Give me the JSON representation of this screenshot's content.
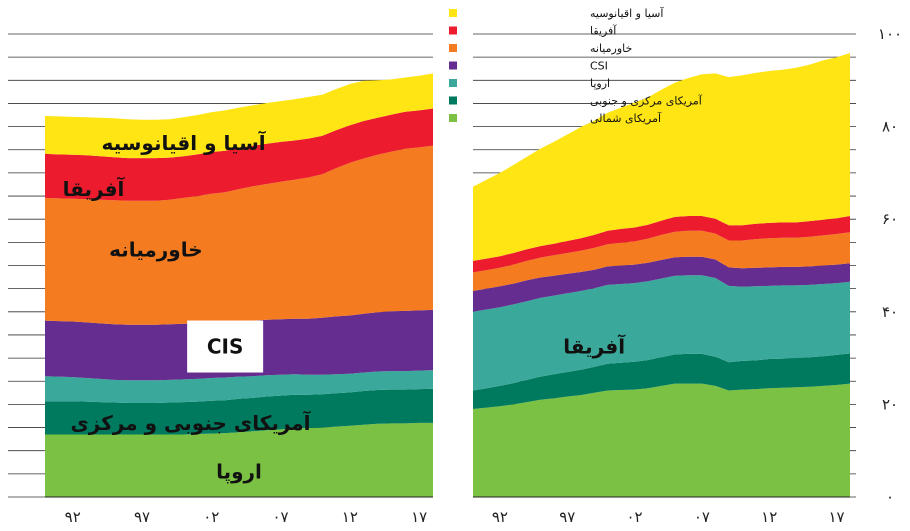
{
  "chart_data": {
    "type": "area",
    "stacked": true,
    "grid": "horizontal",
    "legend_position": "top-center",
    "y_axis_side": "right",
    "ylim": [
      0,
      100
    ],
    "yticks": [
      0,
      20,
      40,
      60,
      80,
      100
    ],
    "ytick_labels": [
      "۰",
      "۲۰",
      "۴۰",
      "۶۰",
      "۸۰",
      "۱۰۰"
    ],
    "legend": [
      {
        "label": "آسیا و اقیانوسیه",
        "color": "#ffe514"
      },
      {
        "label": "آفریقا",
        "color": "#ec1c2e"
      },
      {
        "label": "خاورمیانه",
        "color": "#f47b20"
      },
      {
        "label": "CSI",
        "color": "#662d91"
      },
      {
        "label": "اروپا",
        "color": "#3aa89a"
      },
      {
        "label": "آمریکای مرکزی و جنوبی",
        "color": "#007a5e"
      },
      {
        "label": "آمریکای شمالی",
        "color": "#7bc143"
      }
    ],
    "panels": [
      {
        "x": [
          1990,
          1991,
          1992,
          1993,
          1994,
          1995,
          1996,
          1997,
          1998,
          1999,
          2000,
          2001,
          2002,
          2003,
          2004,
          2005,
          2006,
          2007,
          2008,
          2009,
          2010,
          2011,
          2012,
          2013,
          2014,
          2015,
          2016,
          2017,
          2018
        ],
        "xtick_values": [
          1992,
          1997,
          2002,
          2007,
          2012,
          2017
        ],
        "xtick_labels": [
          "۹۲",
          "۹۷",
          "۰۲",
          "۰۷",
          "۱۲",
          "۱۷"
        ],
        "series": [
          {
            "name": "آمریکای شمالی",
            "color": "#7bc143",
            "values": [
              13.5,
              13.5,
              13.5,
              13.5,
              13.5,
              13.5,
              13.5,
              13.5,
              13.5,
              13.5,
              13.5,
              13.6,
              13.7,
              13.8,
              14,
              14.2,
              14.4,
              14.6,
              14.8,
              14.9,
              15,
              15.2,
              15.4,
              15.6,
              15.8,
              15.9,
              15.9,
              16,
              16
            ]
          },
          {
            "name": "آمریکای مرکزی و جنوبی",
            "color": "#007a5e",
            "values": [
              7.2,
              7.2,
              7.2,
              7.1,
              7,
              6.9,
              6.8,
              6.8,
              6.8,
              6.9,
              7,
              7,
              7.1,
              7.1,
              7.2,
              7.2,
              7.3,
              7.3,
              7.3,
              7.2,
              7.2,
              7.2,
              7.2,
              7.3,
              7.3,
              7.3,
              7.3,
              7.3,
              7.4
            ]
          },
          {
            "name": "اروپا",
            "color": "#3aa89a",
            "values": [
              5.4,
              5.3,
              5.2,
              5.1,
              5,
              4.9,
              4.9,
              4.9,
              4.9,
              4.9,
              4.9,
              4.9,
              4.9,
              4.9,
              4.8,
              4.7,
              4.6,
              4.5,
              4.4,
              4.3,
              4.2,
              4.1,
              4,
              4,
              4,
              4,
              4,
              4,
              4
            ]
          },
          {
            "name": "CSI",
            "color": "#662d91",
            "values": [
              12,
              12,
              12,
              12,
              12,
              12,
              12,
              12,
              12,
              12,
              12,
              12,
              12,
              12,
              12,
              12,
              12,
              12,
              12,
              12.1,
              12.3,
              12.5,
              12.6,
              12.7,
              12.8,
              12.9,
              13,
              13,
              13
            ]
          },
          {
            "name": "خاورمیانه",
            "color": "#f47b20",
            "values": [
              26.5,
              26.5,
              26.5,
              26.6,
              26.7,
              26.8,
              26.8,
              26.8,
              26.8,
              26.9,
              27.2,
              27.5,
              27.8,
              28,
              28.5,
              29,
              29.3,
              29.7,
              30,
              30.5,
              31,
              32,
              33,
              33.5,
              34,
              34.5,
              35,
              35.2,
              35.5
            ]
          },
          {
            "name": "آفریقا",
            "color": "#ec1c2e",
            "values": [
              9.5,
              9.5,
              9.5,
              9.5,
              9.4,
              9.3,
              9.2,
              9.2,
              9.2,
              9.1,
              9,
              9,
              9,
              9,
              8.9,
              8.8,
              8.7,
              8.6,
              8.5,
              8.4,
              8.3,
              8.2,
              8.1,
              8.1,
              8,
              8,
              8,
              8,
              8
            ]
          },
          {
            "name": "آسیا و اقیانوسیه",
            "color": "#ffe514",
            "values": [
              8.2,
              8.2,
              8.2,
              8.2,
              8.3,
              8.4,
              8.4,
              8.3,
              8.3,
              8.3,
              8.4,
              8.5,
              8.6,
              8.7,
              8.7,
              8.7,
              8.8,
              8.8,
              8.9,
              9,
              8.9,
              8.9,
              8.9,
              8.7,
              8.1,
              7.6,
              7.4,
              7.5,
              7.6
            ]
          }
        ]
      },
      {
        "x": [
          1990,
          1991,
          1992,
          1993,
          1994,
          1995,
          1996,
          1997,
          1998,
          1999,
          2000,
          2001,
          2002,
          2003,
          2004,
          2005,
          2006,
          2007,
          2008,
          2009,
          2010,
          2011,
          2012,
          2013,
          2014,
          2015,
          2016,
          2017,
          2018
        ],
        "xtick_values": [
          1992,
          1997,
          2002,
          2007,
          2012,
          2017
        ],
        "xtick_labels": [
          "۹۲",
          "۹۷",
          "۰۲",
          "۰۷",
          "۱۲",
          "۱۷"
        ],
        "series": [
          {
            "name": "آمریکای شمالی",
            "color": "#7bc143",
            "values": [
              19,
              19.3,
              19.6,
              20,
              20.5,
              21,
              21.3,
              21.7,
              22,
              22.5,
              23,
              23.1,
              23.2,
              23.5,
              24,
              24.5,
              24.5,
              24.5,
              24,
              23,
              23.2,
              23.3,
              23.5,
              23.6,
              23.7,
              23.8,
              24,
              24.2,
              24.5
            ]
          },
          {
            "name": "آمریکای مرکزی و جنوبی",
            "color": "#007a5e",
            "values": [
              4,
              4.2,
              4.4,
              4.6,
              4.8,
              5,
              5.2,
              5.3,
              5.5,
              5.6,
              5.8,
              5.9,
              6,
              6.1,
              6.2,
              6.3,
              6.4,
              6.4,
              6.3,
              6.1,
              6.2,
              6.2,
              6.3,
              6.3,
              6.3,
              6.4,
              6.4,
              6.5,
              6.5
            ]
          },
          {
            "name": "اروپا",
            "color": "#3aa89a",
            "values": [
              17,
              17,
              17,
              17,
              17,
              17,
              17,
              17,
              17,
              17,
              17,
              17,
              17,
              17,
              17,
              17,
              17,
              17,
              17,
              16.5,
              16,
              16,
              15.8,
              15.8,
              15.7,
              15.6,
              15.6,
              15.5,
              15.5
            ]
          },
          {
            "name": "CSI",
            "color": "#662d91",
            "values": [
              4.5,
              4.5,
              4.5,
              4.5,
              4.5,
              4.4,
              4.3,
              4.2,
              4.1,
              4,
              4,
              4,
              4,
              4,
              4,
              4,
              4,
              4,
              4,
              4,
              4,
              4,
              4,
              4,
              4,
              4,
              4,
              4,
              4
            ]
          },
          {
            "name": "خاورمیانه",
            "color": "#f47b20",
            "values": [
              4,
              4,
              4,
              4.1,
              4.2,
              4.3,
              4.4,
              4.5,
              4.6,
              4.7,
              4.8,
              4.9,
              5,
              5.2,
              5.4,
              5.5,
              5.6,
              5.6,
              5.6,
              5.8,
              6,
              6.2,
              6.3,
              6.3,
              6.3,
              6.4,
              6.5,
              6.6,
              6.7
            ]
          },
          {
            "name": "آفریقا",
            "color": "#ec1c2e",
            "values": [
              2.5,
              2.5,
              2.5,
              2.5,
              2.5,
              2.5,
              2.5,
              2.6,
              2.7,
              2.8,
              2.9,
              3,
              3,
              3,
              3.1,
              3.2,
              3.2,
              3.2,
              3.2,
              3.3,
              3.3,
              3.3,
              3.3,
              3.3,
              3.3,
              3.4,
              3.4,
              3.4,
              3.5
            ]
          },
          {
            "name": "آسیا و اقیانوسیه",
            "color": "#ffe514",
            "values": [
              16,
              17,
              18,
              19,
              20,
              21,
              22,
              23,
              24,
              24.7,
              25.5,
              26.2,
              27,
              27.5,
              28.3,
              29,
              29.8,
              30.6,
              31.4,
              32,
              32.4,
              32.6,
              32.8,
              33,
              33.4,
              33.8,
              34.4,
              34.8,
              35.2
            ]
          }
        ]
      }
    ],
    "area_labels": [
      {
        "panel": 0,
        "text": "آسیا و اقیانوسیه",
        "x": 2000,
        "y": 76.5
      },
      {
        "panel": 0,
        "text": "آفریقا",
        "x": 1993.5,
        "y": 66.5
      },
      {
        "panel": 0,
        "text": "خاورمیانه",
        "x": 1998,
        "y": 53.5
      },
      {
        "panel": 0,
        "text": "CIS",
        "x": 2003,
        "y": 32.5,
        "boxed": true
      },
      {
        "panel": 0,
        "text": "آمریکای جنوبی و مرکزی",
        "x": 2000.5,
        "y": 16
      },
      {
        "panel": 0,
        "text": "اروپا",
        "x": 2004,
        "y": 5.5
      },
      {
        "panel": 1,
        "text": "آفریقا",
        "x": 1999,
        "y": 32.5
      }
    ]
  }
}
